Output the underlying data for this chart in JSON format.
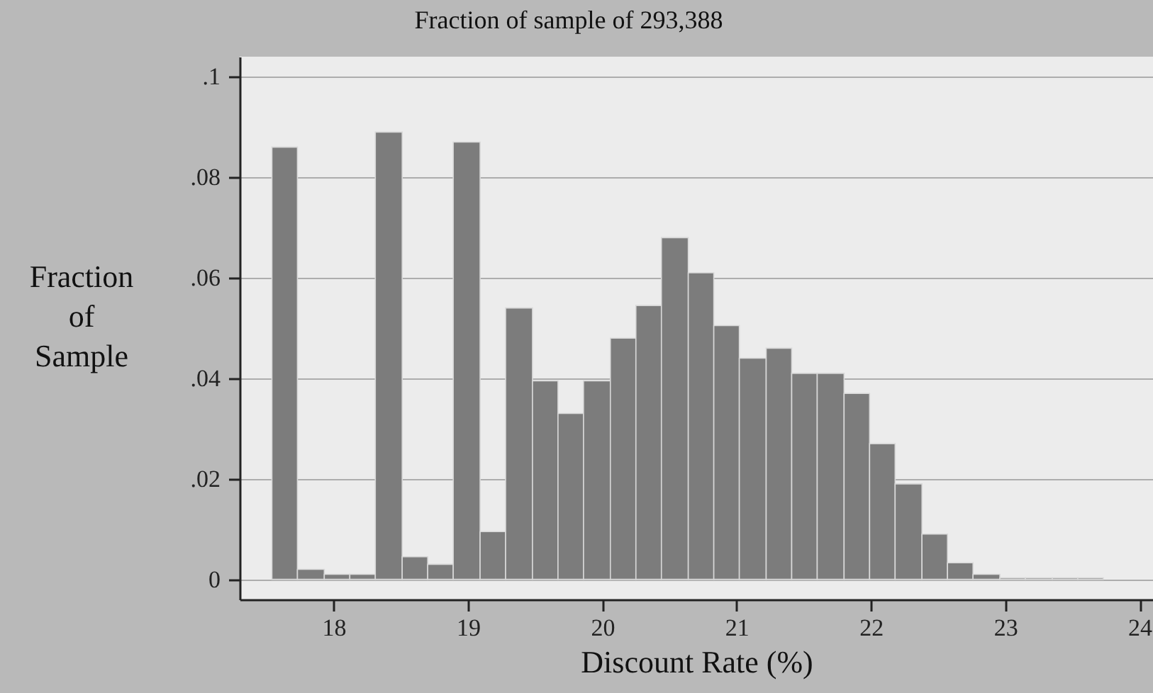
{
  "chart_data": {
    "type": "histogram",
    "title": "Fraction of sample of 293,388",
    "xlabel": "Discount Rate (%)",
    "ylabel": "Fraction of Sample",
    "bins": [
      17.54,
      17.73,
      17.93,
      18.12,
      18.31,
      18.51,
      18.7,
      18.89,
      19.09,
      19.28,
      19.48,
      19.67,
      19.86,
      20.06,
      20.25,
      20.44,
      20.64,
      20.83,
      21.02,
      21.22,
      21.41,
      21.6,
      21.8,
      21.99,
      22.18,
      22.38,
      22.57,
      22.76,
      22.96,
      23.15,
      23.35,
      23.54,
      23.73
    ],
    "values": [
      0.086,
      0.002,
      0.001,
      0.001,
      0.089,
      0.0045,
      0.003,
      0.087,
      0.0095,
      0.054,
      0.0395,
      0.033,
      0.0395,
      0.048,
      0.0545,
      0.068,
      0.061,
      0.0505,
      0.044,
      0.046,
      0.041,
      0.041,
      0.037,
      0.027,
      0.019,
      0.009,
      0.0033,
      0.001,
      0.0003,
      0.0003,
      0.0003,
      0.0003
    ],
    "color": "#7c7c7c",
    "xlim": [
      17.3,
      24.1
    ],
    "xticks": [
      18,
      19,
      20,
      21,
      22,
      23,
      24
    ],
    "ylim": [
      -0.004,
      0.104
    ],
    "yticks": [
      0,
      {
        "value": 0.02,
        "label": ".02"
      },
      {
        "value": 0.04,
        "label": ".04"
      },
      {
        "value": 0.06,
        "label": ".06"
      },
      {
        "value": 0.08,
        "label": ".08"
      },
      {
        "value": 0.1,
        "label": ".1"
      }
    ],
    "grid": "y"
  }
}
